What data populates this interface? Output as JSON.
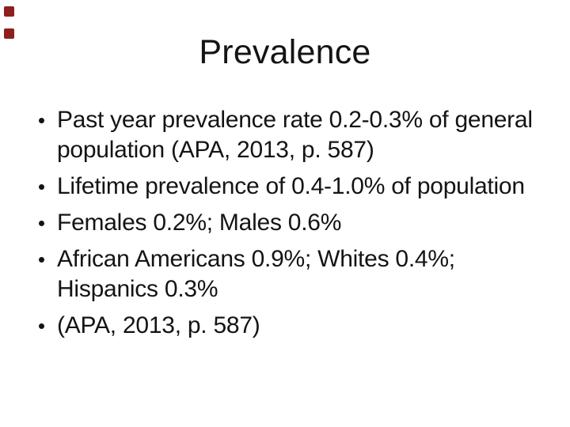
{
  "slide": {
    "title": "Prevalence",
    "bullet_char": "•",
    "bullets": [
      {
        "lines": [
          "Past year prevalence rate 0.2-0.3% of general",
          "population (APA, 2013, p. 587)"
        ]
      },
      {
        "lines": [
          "Lifetime prevalence of 0.4-1.0% of population"
        ]
      },
      {
        "lines": [
          "Females 0.2%; Males 0.6%"
        ]
      },
      {
        "lines": [
          "African Americans 0.9%; Whites 0.4%;",
          "Hispanics 0.3%"
        ]
      },
      {
        "lines": [
          "(APA, 2013, p. 587)"
        ]
      }
    ],
    "colors": {
      "background": "#ffffff",
      "text": "#141414",
      "accent_square": "#8e1f1f"
    }
  }
}
